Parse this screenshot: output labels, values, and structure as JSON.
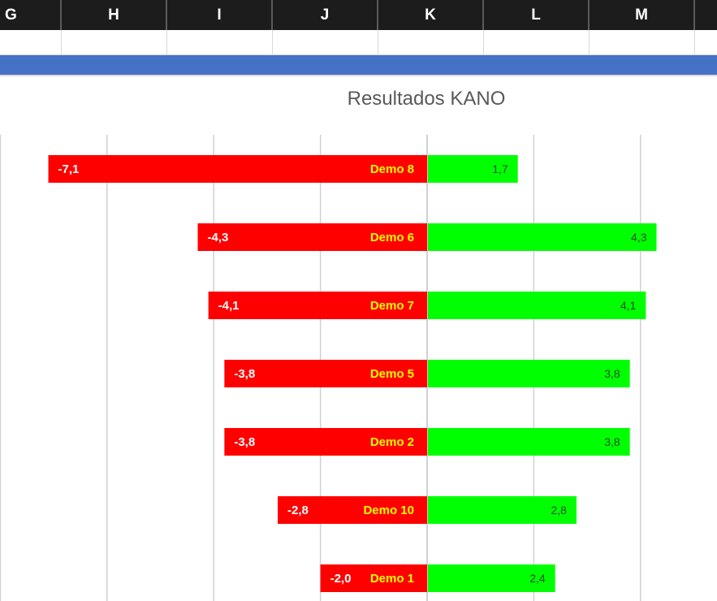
{
  "columns": [
    "G",
    "H",
    "I",
    "J",
    "K",
    "L",
    "M"
  ],
  "chart_data": {
    "type": "bar",
    "orientation": "horizontal",
    "title": "Resultados KANO",
    "categories": [
      "Demo 8",
      "Demo 6",
      "Demo 7",
      "Demo 5",
      "Demo 2",
      "Demo 10",
      "Demo 1"
    ],
    "series": [
      {
        "values": [
          -7.1,
          -4.3,
          -4.1,
          -3.8,
          -3.8,
          -2.8,
          -2.0
        ],
        "labels": [
          "-7,1",
          "-4,3",
          "-4,1",
          "-3,8",
          "-3,8",
          "-2,8",
          "-2,0"
        ],
        "color": "#ff0000"
      },
      {
        "values": [
          1.7,
          4.3,
          4.1,
          3.8,
          3.8,
          2.8,
          2.4
        ],
        "labels": [
          "1,7",
          "4,3",
          "4,1",
          "3,8",
          "3,8",
          "2,8",
          "2,4"
        ],
        "color": "#00ff00"
      }
    ],
    "grid": true,
    "legend": "none"
  },
  "colors": {
    "header_bg": "#1c1c1c",
    "band": "#4472c4",
    "gridline": "#d0d0d0",
    "category_label": "#ffff00"
  }
}
